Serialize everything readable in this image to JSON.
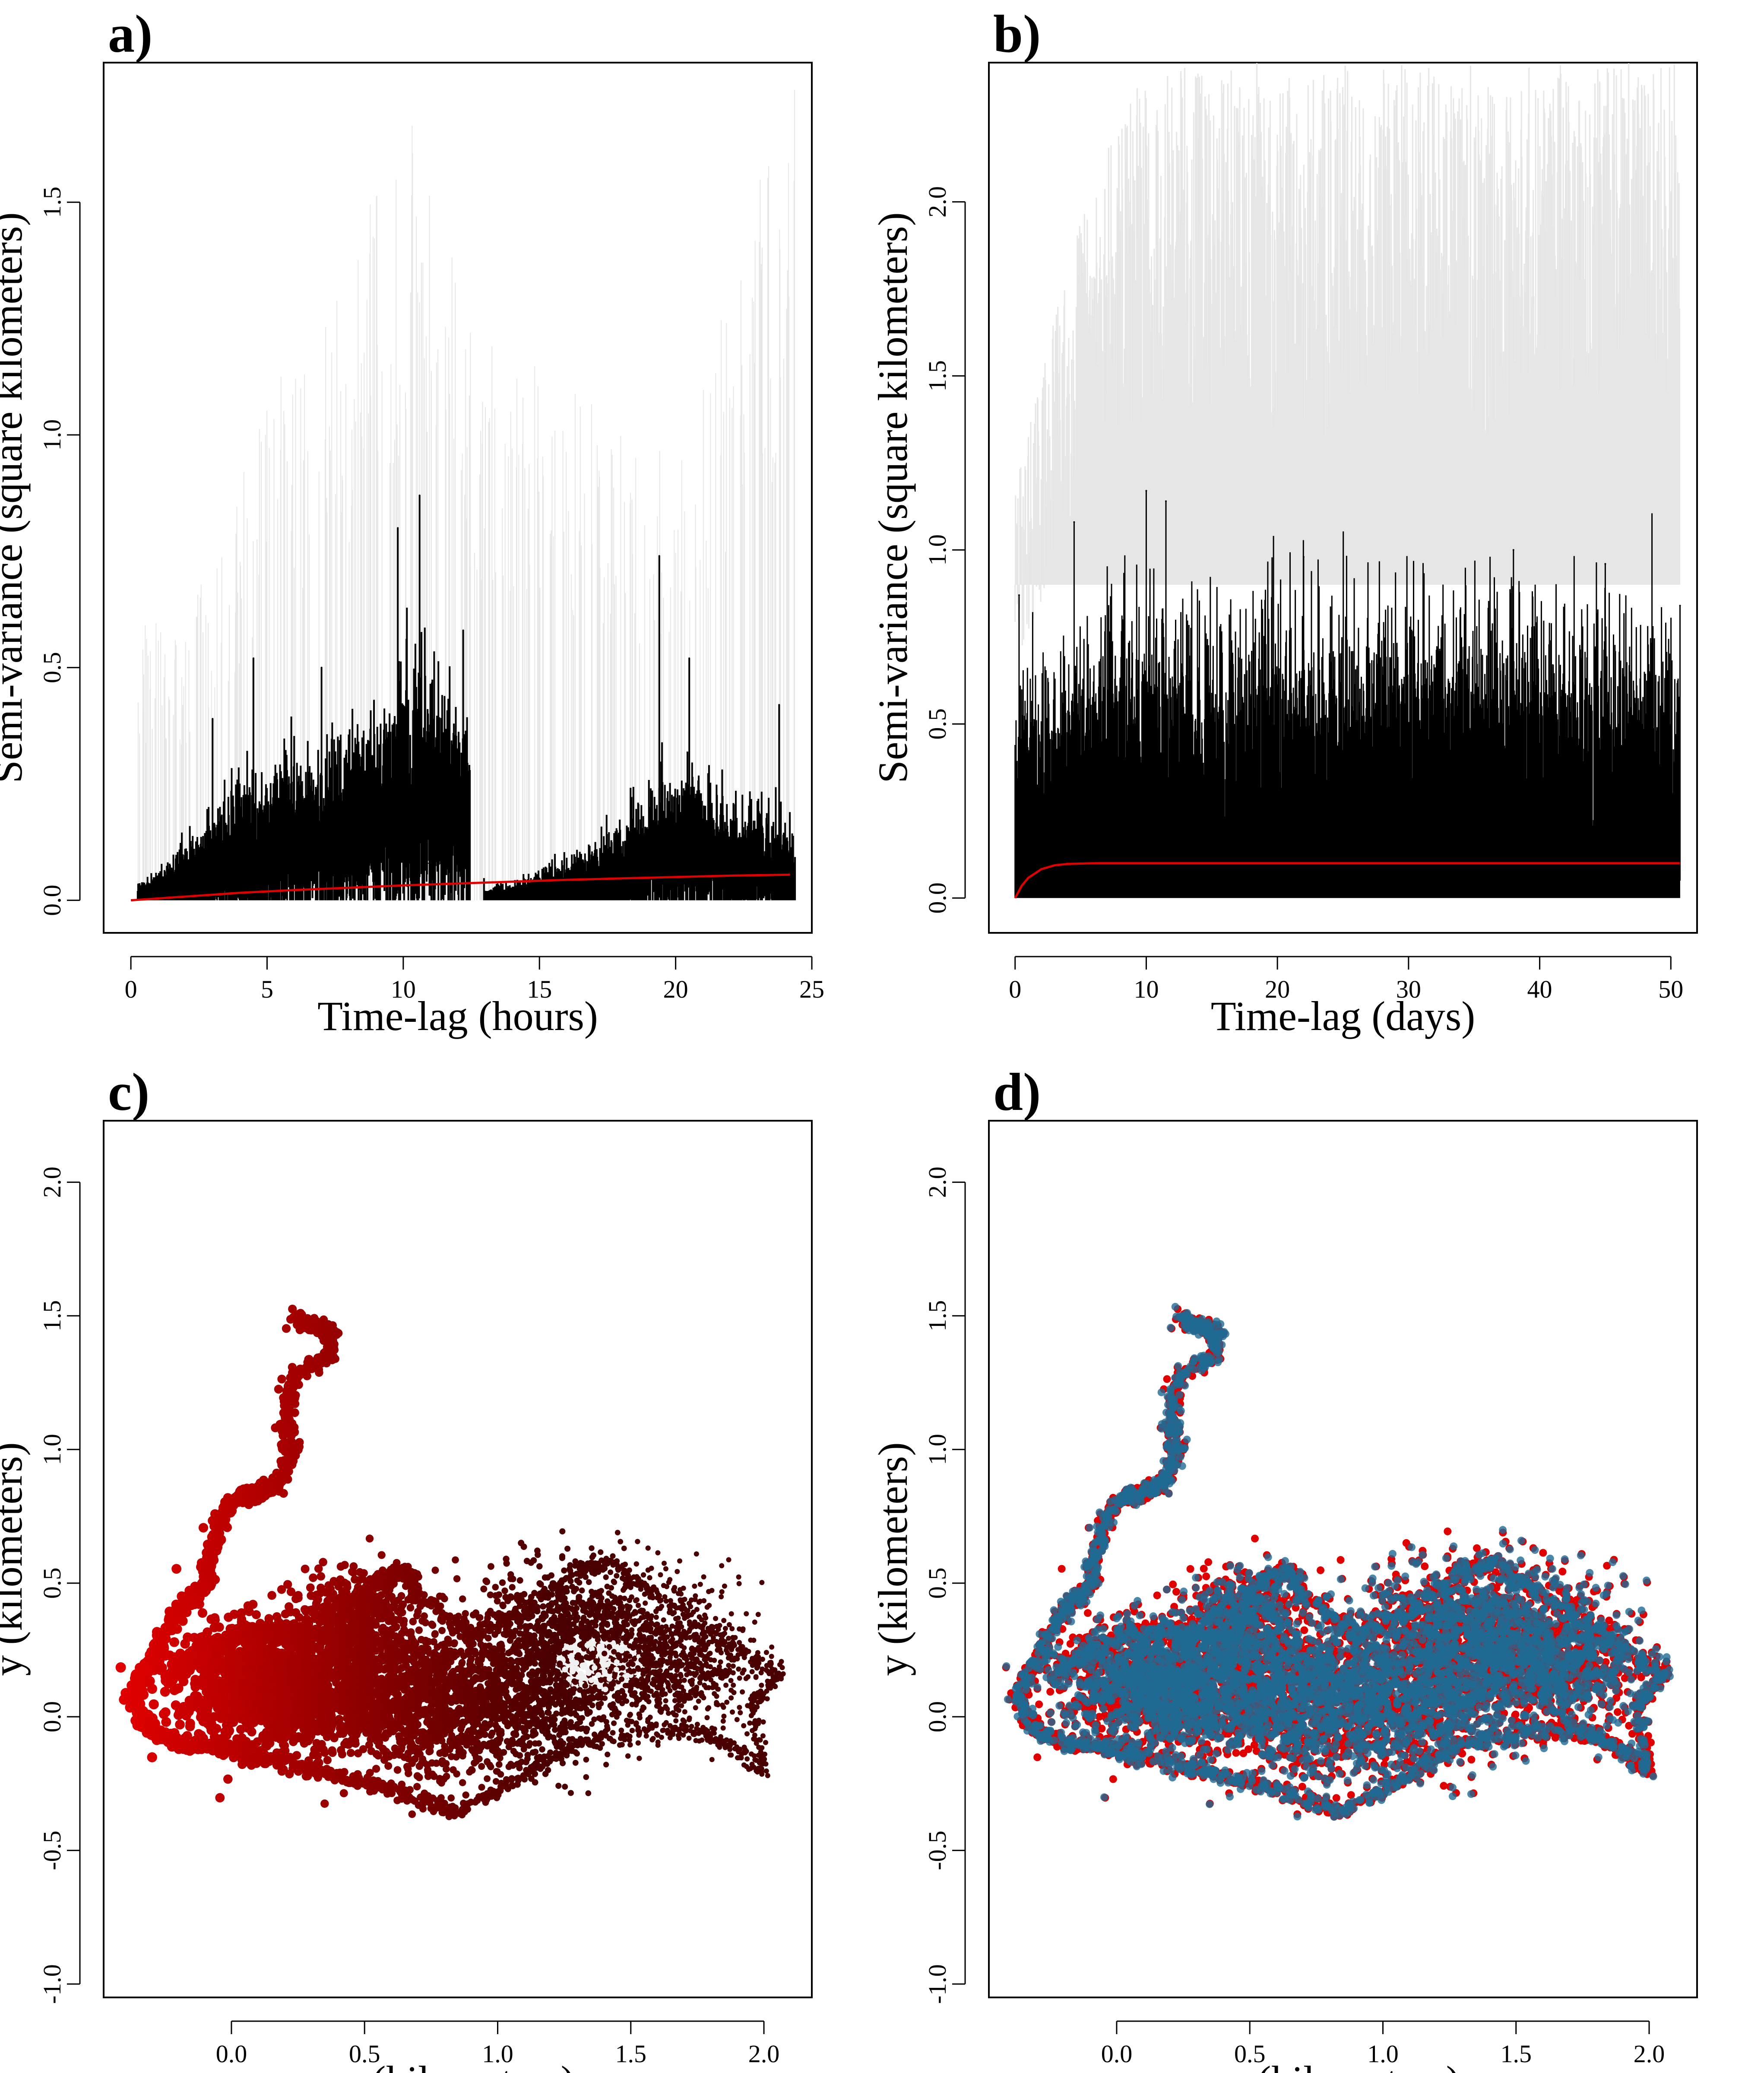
{
  "colors": {
    "black": "#000000",
    "red": "#e00000",
    "light_gray": "#e6e6e6",
    "dark_red": "#4a0000",
    "white_point": "#f0f0f0",
    "blue": "#1f6a94"
  },
  "chart_data": [
    {
      "panel": "a)",
      "type": "line",
      "xlabel": "Time-lag (hours)",
      "ylabel": "Semi-variance (square kilometers)",
      "xlim": [
        -1,
        25
      ],
      "ylim": [
        -0.07,
        1.8
      ],
      "xticks": [
        0,
        5,
        10,
        15,
        20,
        25
      ],
      "xtick_labels": [
        "0",
        "5",
        "10",
        "15",
        "20",
        "25"
      ],
      "yticks": [
        0.0,
        0.5,
        1.0,
        1.5
      ],
      "ytick_labels": [
        "0.0",
        "0.5",
        "1.0",
        "1.5"
      ],
      "grid": false,
      "legend": "none",
      "series": [
        {
          "style": "empirical semi-variance (black, dense)",
          "x": [
            0.5,
            1.5,
            2.5,
            3.0,
            3.5,
            4.0,
            4.5,
            5.0,
            5.5,
            6.0,
            6.5,
            7.0,
            7.5,
            8.0,
            8.5,
            9.0,
            9.5,
            9.8,
            10.2,
            10.6,
            11.0,
            11.5,
            12.0,
            12.4,
            13.0,
            14.0,
            15.0,
            16.0,
            17.0,
            18.0,
            19.0,
            19.4,
            20.0,
            20.5,
            21.0,
            21.5,
            22.0,
            22.5,
            23.0,
            23.5,
            24.0,
            24.4
          ],
          "y": [
            0.03,
            0.07,
            0.12,
            0.14,
            0.17,
            0.19,
            0.2,
            0.22,
            0.23,
            0.25,
            0.24,
            0.26,
            0.27,
            0.27,
            0.28,
            0.3,
            0.32,
            0.38,
            0.4,
            0.42,
            0.38,
            0.33,
            0.32,
            0.3,
            0.02,
            0.03,
            0.05,
            0.07,
            0.09,
            0.13,
            0.17,
            0.22,
            0.2,
            0.23,
            0.19,
            0.18,
            0.17,
            0.15,
            0.16,
            0.14,
            0.12,
            0.1
          ],
          "peaks": [
            [
              3.0,
              0.39
            ],
            [
              4.5,
              0.52
            ],
            [
              7.0,
              0.5
            ],
            [
              9.8,
              0.8
            ],
            [
              10.6,
              0.87
            ],
            [
              12.2,
              0.58
            ],
            [
              19.4,
              0.74
            ],
            [
              20.5,
              0.52
            ],
            [
              23.8,
              0.42
            ]
          ]
        },
        {
          "style": "confidence envelope (light gray)",
          "x": [
            2.0,
            5.0,
            8.0,
            10.0,
            11.0,
            12.3,
            20.0,
            24.4
          ],
          "y": [
            0.6,
            1.08,
            1.35,
            1.72,
            1.6,
            1.25,
            0.95,
            1.8
          ]
        },
        {
          "style": "fitted model (red)",
          "x": [
            0,
            2,
            4,
            6,
            8,
            10,
            12,
            14,
            16,
            18,
            20,
            22,
            24.2
          ],
          "y": [
            0.0,
            0.008,
            0.016,
            0.022,
            0.027,
            0.032,
            0.036,
            0.04,
            0.044,
            0.047,
            0.05,
            0.053,
            0.055
          ]
        }
      ]
    },
    {
      "panel": "b)",
      "type": "line",
      "xlabel": "Time-lag (days)",
      "ylabel": "Semi-variance (square kilometers)",
      "xlim": [
        -2,
        52
      ],
      "ylim": [
        -0.1,
        2.4
      ],
      "xticks": [
        0,
        10,
        20,
        30,
        40,
        50
      ],
      "xtick_labels": [
        "0",
        "10",
        "20",
        "30",
        "40",
        "50"
      ],
      "yticks": [
        0.0,
        0.5,
        1.0,
        1.5,
        2.0
      ],
      "ytick_labels": [
        "0.0",
        "0.5",
        "1.0",
        "1.5",
        "2.0"
      ],
      "grid": false,
      "legend": "none",
      "series": [
        {
          "style": "empirical semi-variance (black, dense)",
          "x": [
            0,
            5,
            10,
            15,
            20,
            25,
            30,
            35,
            40,
            45,
            50.7
          ],
          "y": [
            0.45,
            0.6,
            0.65,
            0.6,
            0.62,
            0.6,
            0.62,
            0.64,
            0.62,
            0.63,
            0.62
          ],
          "peaks": [
            [
              0.3,
              0.87
            ],
            [
              4.5,
              1.08
            ],
            [
              10.0,
              1.17
            ],
            [
              11.5,
              1.14
            ],
            [
              22.0,
              0.98
            ],
            [
              38.0,
              1.0
            ],
            [
              45.0,
              0.96
            ],
            [
              50.7,
              0.84
            ]
          ]
        },
        {
          "style": "confidence envelope (light gray)",
          "x": [
            0,
            5,
            10,
            20,
            30,
            40,
            50.7
          ],
          "y": [
            1.2,
            2.0,
            2.4,
            2.4,
            2.4,
            2.4,
            2.4
          ]
        },
        {
          "style": "fitted model (red)",
          "x": [
            0,
            0.5,
            1,
            2,
            3,
            4,
            6,
            10,
            20,
            30,
            40,
            50.7
          ],
          "y": [
            0.0,
            0.035,
            0.058,
            0.083,
            0.094,
            0.098,
            0.1,
            0.1,
            0.1,
            0.1,
            0.1,
            0.1
          ]
        }
      ]
    },
    {
      "panel": "c)",
      "type": "scatter",
      "xlabel": "x (kilometers)",
      "ylabel": "y (kilometers)",
      "xlim": [
        -0.48,
        2.18
      ],
      "ylim": [
        -1.05,
        2.23
      ],
      "xticks": [
        0.0,
        0.5,
        1.0,
        1.5,
        2.0
      ],
      "xtick_labels": [
        "0.0",
        "0.5",
        "1.0",
        "1.5",
        "2.0"
      ],
      "yticks": [
        -1.0,
        -0.5,
        0.0,
        0.5,
        1.0,
        1.5,
        2.0
      ],
      "ytick_labels": [
        "-1.0",
        "-0.5",
        "0.0",
        "0.5",
        "1.0",
        "1.5",
        "2.0"
      ],
      "grid": false,
      "legend": "none",
      "color_encoding": "points shade from red (west) to dark red, with light gray points near x=1.4, y=0.2",
      "track": [
        [
          0.23,
          1.5
        ],
        [
          0.3,
          1.46
        ],
        [
          0.38,
          1.44
        ],
        [
          0.36,
          1.34
        ],
        [
          0.24,
          1.28
        ],
        [
          0.2,
          1.12
        ],
        [
          0.22,
          1.0
        ],
        [
          0.18,
          0.88
        ],
        [
          0.12,
          0.84
        ],
        [
          0.02,
          0.82
        ],
        [
          -0.05,
          0.72
        ],
        [
          -0.08,
          0.6
        ],
        [
          -0.1,
          0.48
        ],
        [
          -0.18,
          0.42
        ],
        [
          -0.25,
          0.32
        ],
        [
          -0.3,
          0.2
        ],
        [
          -0.38,
          0.08
        ],
        [
          -0.3,
          -0.05
        ],
        [
          -0.2,
          -0.1
        ],
        [
          -0.05,
          -0.12
        ],
        [
          0.1,
          -0.15
        ],
        [
          0.3,
          -0.2
        ],
        [
          0.5,
          -0.25
        ],
        [
          0.7,
          -0.3
        ],
        [
          0.85,
          -0.36
        ],
        [
          1.05,
          -0.25
        ],
        [
          1.3,
          -0.1
        ],
        [
          1.55,
          -0.05
        ],
        [
          1.75,
          -0.05
        ],
        [
          1.85,
          -0.1
        ],
        [
          2.0,
          -0.2
        ],
        [
          1.95,
          0.05
        ],
        [
          2.05,
          0.15
        ],
        [
          1.85,
          0.3
        ],
        [
          1.6,
          0.45
        ],
        [
          1.42,
          0.58
        ],
        [
          1.3,
          0.55
        ],
        [
          1.1,
          0.4
        ],
        [
          0.9,
          0.3
        ],
        [
          0.7,
          0.45
        ],
        [
          0.65,
          0.55
        ],
        [
          0.55,
          0.5
        ],
        [
          0.45,
          0.3
        ],
        [
          0.3,
          0.3
        ],
        [
          0.15,
          0.32
        ],
        [
          0.0,
          0.3
        ],
        [
          -0.15,
          0.22
        ],
        [
          -0.25,
          0.15
        ]
      ]
    },
    {
      "panel": "d)",
      "type": "scatter",
      "xlabel": "x (kilometers)",
      "ylabel": "y (kilometers)",
      "xlim": [
        -0.48,
        2.18
      ],
      "ylim": [
        -1.05,
        2.23
      ],
      "xticks": [
        0.0,
        0.5,
        1.0,
        1.5,
        2.0
      ],
      "xtick_labels": [
        "0.0",
        "0.5",
        "1.0",
        "1.5",
        "2.0"
      ],
      "yticks": [
        -1.0,
        -0.5,
        0.0,
        0.5,
        1.0,
        1.5,
        2.0
      ],
      "ytick_labels": [
        "-1.0",
        "-0.5",
        "0.0",
        "0.5",
        "1.0",
        "1.5",
        "2.0"
      ],
      "grid": false,
      "legend": "none",
      "color_encoding": "blue points overlaid on red points, purple where they overlap",
      "track": [
        [
          0.23,
          1.5
        ],
        [
          0.3,
          1.46
        ],
        [
          0.38,
          1.44
        ],
        [
          0.36,
          1.34
        ],
        [
          0.24,
          1.28
        ],
        [
          0.2,
          1.12
        ],
        [
          0.22,
          1.0
        ],
        [
          0.18,
          0.88
        ],
        [
          0.12,
          0.84
        ],
        [
          0.02,
          0.82
        ],
        [
          -0.05,
          0.72
        ],
        [
          -0.08,
          0.6
        ],
        [
          -0.1,
          0.48
        ],
        [
          -0.18,
          0.42
        ],
        [
          -0.25,
          0.32
        ],
        [
          -0.3,
          0.2
        ],
        [
          -0.38,
          0.08
        ],
        [
          -0.3,
          -0.05
        ],
        [
          -0.2,
          -0.1
        ],
        [
          -0.05,
          -0.12
        ],
        [
          0.1,
          -0.15
        ],
        [
          0.3,
          -0.2
        ],
        [
          0.5,
          -0.25
        ],
        [
          0.7,
          -0.3
        ],
        [
          0.85,
          -0.36
        ],
        [
          1.05,
          -0.25
        ],
        [
          1.3,
          -0.1
        ],
        [
          1.55,
          -0.05
        ],
        [
          1.75,
          -0.05
        ],
        [
          1.85,
          -0.1
        ],
        [
          2.0,
          -0.2
        ],
        [
          1.95,
          0.05
        ],
        [
          2.05,
          0.15
        ],
        [
          1.85,
          0.3
        ],
        [
          1.6,
          0.45
        ],
        [
          1.42,
          0.58
        ],
        [
          1.3,
          0.55
        ],
        [
          1.1,
          0.4
        ],
        [
          0.9,
          0.3
        ],
        [
          0.7,
          0.45
        ],
        [
          0.65,
          0.55
        ],
        [
          0.55,
          0.5
        ],
        [
          0.45,
          0.3
        ],
        [
          0.3,
          0.3
        ],
        [
          0.15,
          0.32
        ],
        [
          0.0,
          0.3
        ],
        [
          -0.15,
          0.22
        ],
        [
          -0.25,
          0.15
        ]
      ]
    }
  ]
}
